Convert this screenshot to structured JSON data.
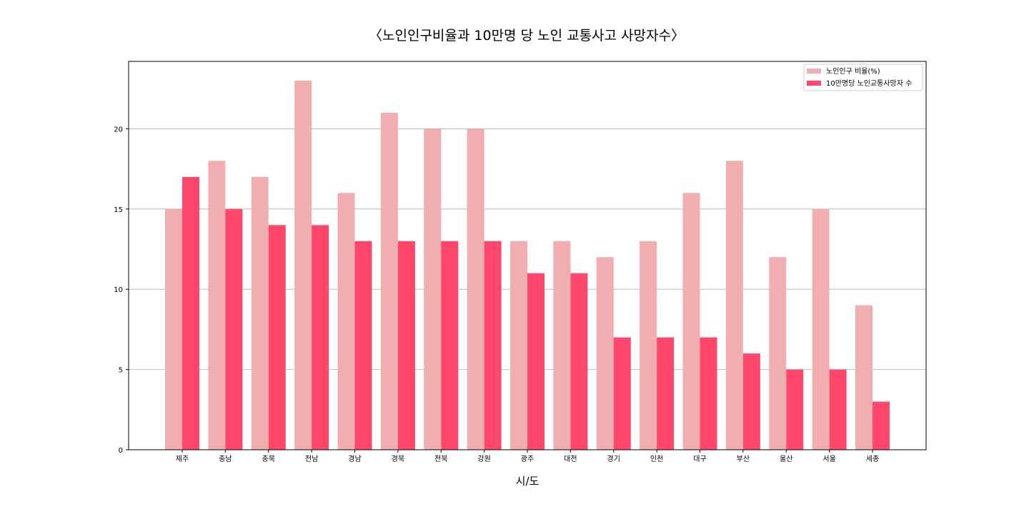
{
  "chart_data": {
    "type": "bar",
    "title": "〈노인인구비율과 10만명 당 노인 교통사고 사망자수〉",
    "xlabel": "시/도",
    "ylabel": "",
    "ylim": [
      0,
      24.2
    ],
    "yticks": [
      0,
      5,
      10,
      15,
      20
    ],
    "grid": "horizontal",
    "legend_position": "top-right",
    "categories": [
      "제주",
      "충남",
      "충북",
      "전남",
      "경남",
      "경북",
      "전북",
      "강원",
      "광주",
      "대전",
      "경기",
      "인천",
      "대구",
      "부산",
      "울산",
      "서울",
      "세종"
    ],
    "series": [
      {
        "name": "노인인구 비율(%)",
        "color": "#f0aeb0",
        "values": [
          15,
          18,
          17,
          23,
          16,
          21,
          20,
          20,
          13,
          13,
          12,
          13,
          16,
          18,
          12,
          15,
          9
        ]
      },
      {
        "name": "10만명당 노인교통사망자 수",
        "color": "#ff476c",
        "values": [
          17,
          15,
          14,
          14,
          13,
          13,
          13,
          13,
          11,
          11,
          7,
          7,
          7,
          6,
          5,
          5,
          3
        ]
      }
    ]
  }
}
